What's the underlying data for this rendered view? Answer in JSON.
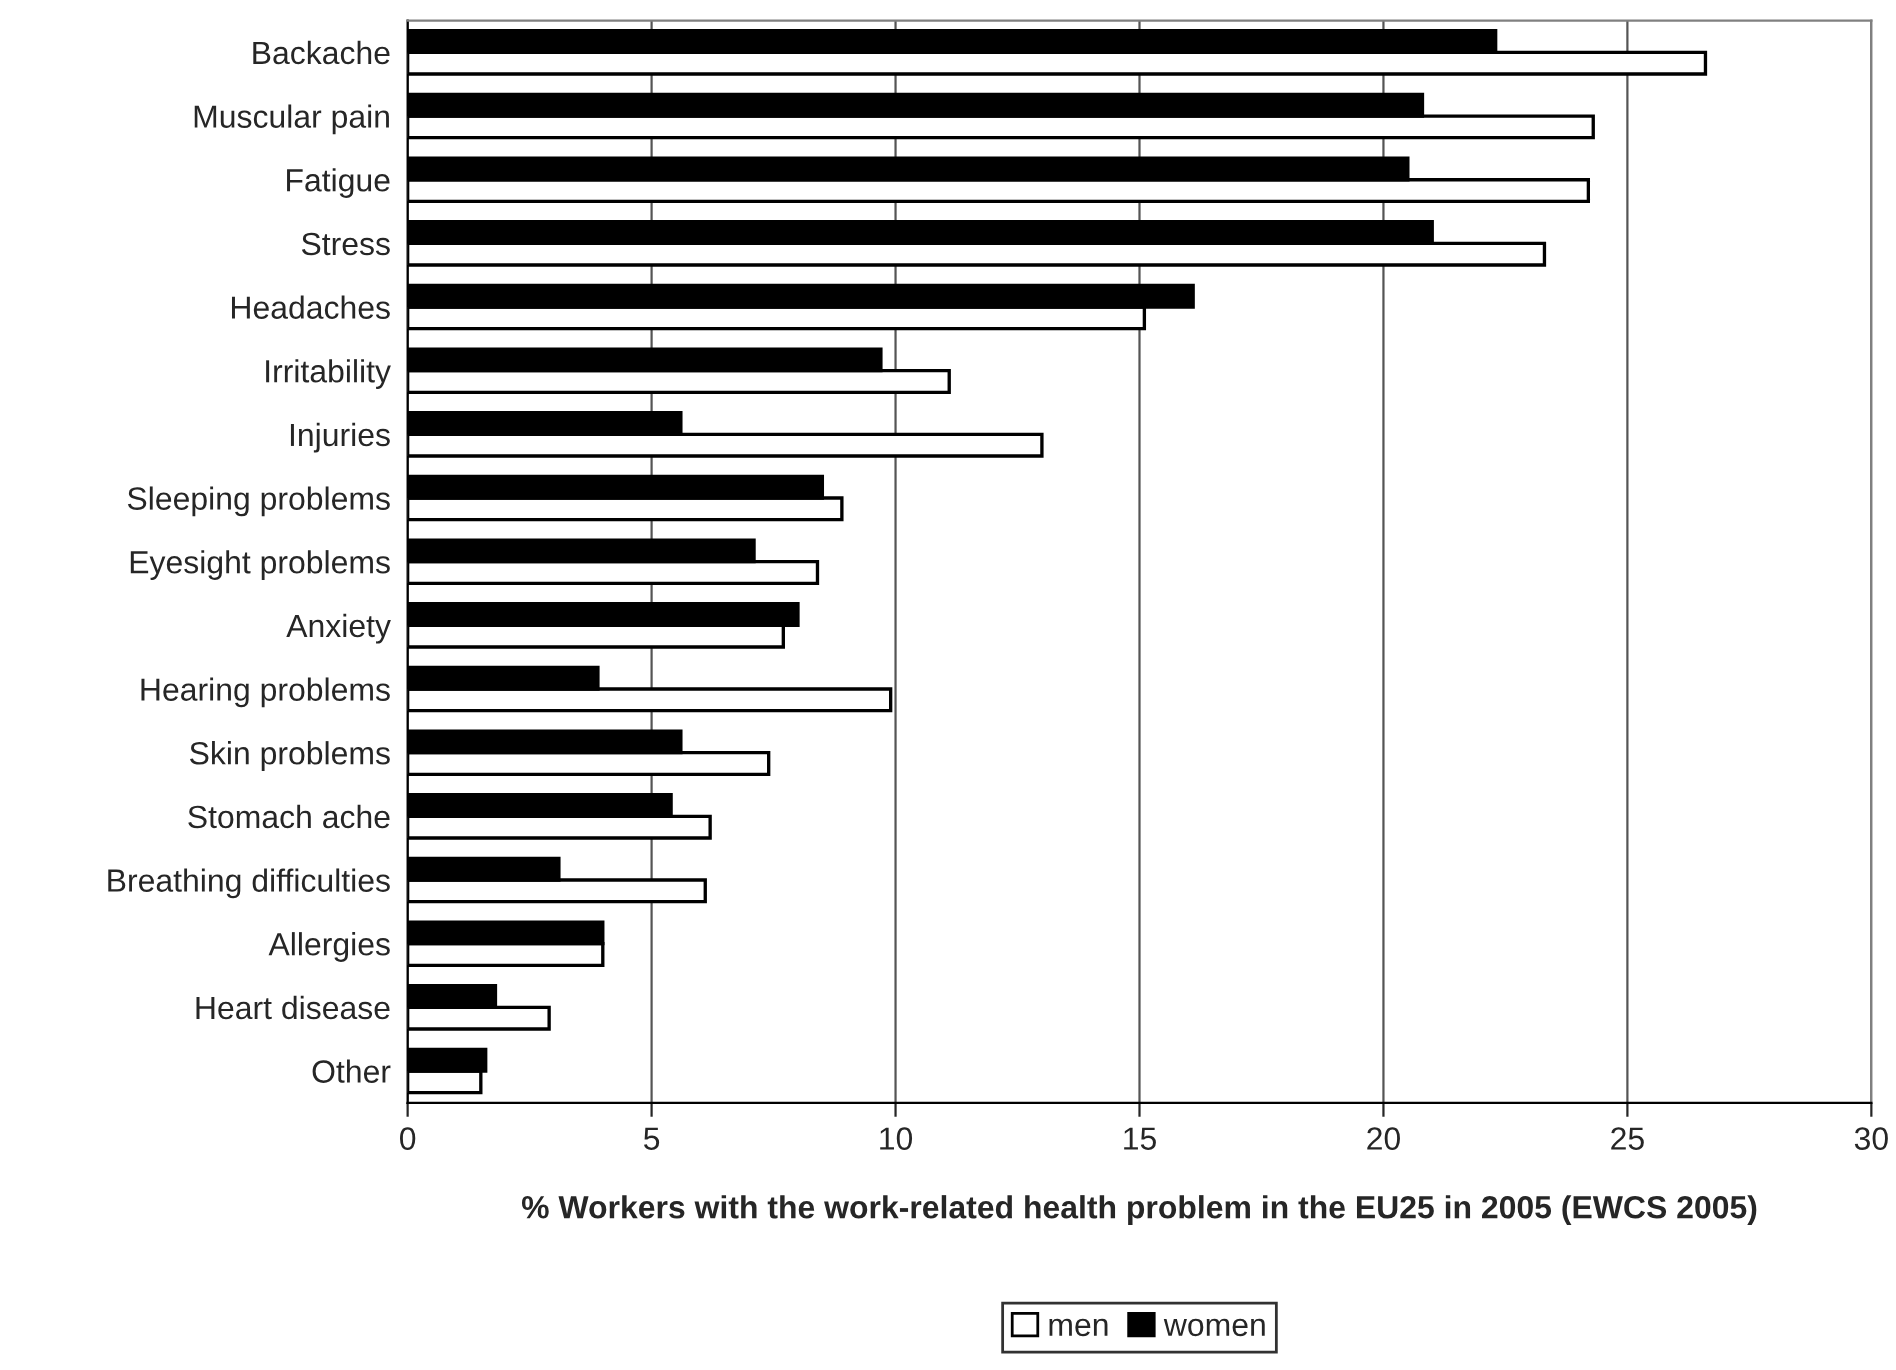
{
  "chart_data": {
    "type": "bar",
    "orientation": "horizontal",
    "xlabel": "% Workers with the work-related health problem in the EU25 in 2005 (EWCS 2005)",
    "categories": [
      "Backache",
      "Muscular pain",
      "Fatigue",
      "Stress",
      "Headaches",
      "Irritability",
      "Injuries",
      "Sleeping problems",
      "Eyesight problems",
      "Anxiety",
      "Hearing problems",
      "Skin problems",
      "Stomach ache",
      "Breathing difficulties",
      "Allergies",
      "Heart disease",
      "Other"
    ],
    "series": [
      {
        "name": "men",
        "color": "#ffffff",
        "values": [
          26.6,
          24.3,
          24.2,
          23.3,
          15.1,
          11.1,
          13.0,
          8.9,
          8.4,
          7.7,
          9.9,
          7.4,
          6.2,
          6.1,
          4.0,
          2.9,
          1.5
        ]
      },
      {
        "name": "women",
        "color": "#000000",
        "values": [
          22.3,
          20.8,
          20.5,
          21.0,
          16.1,
          9.7,
          5.6,
          8.5,
          7.1,
          8.0,
          3.9,
          5.6,
          5.4,
          3.1,
          4.0,
          1.8,
          1.6
        ]
      }
    ],
    "xlim": [
      0,
      30
    ],
    "xticks": [
      0,
      5,
      10,
      15,
      20,
      25,
      30
    ],
    "grid": "x",
    "legend": "bottom"
  }
}
